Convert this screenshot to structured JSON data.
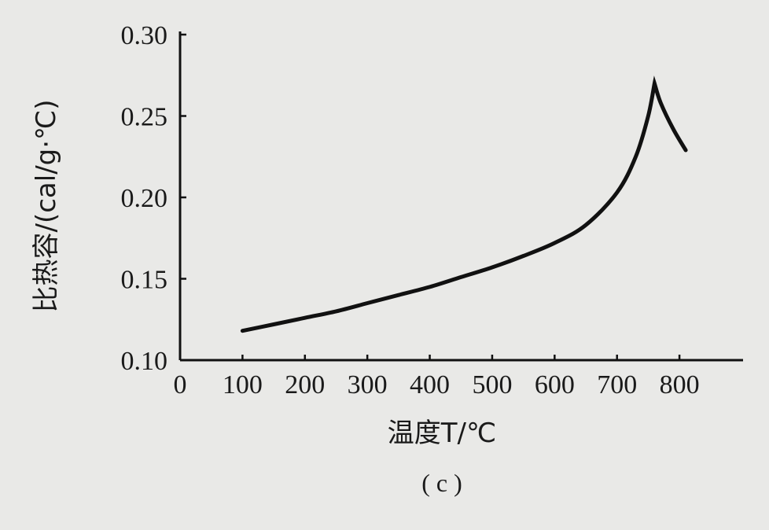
{
  "chart_data": {
    "type": "line",
    "xlabel": "温度T/℃",
    "ylabel": "比热容/(cal/g·℃)",
    "caption": "( c )",
    "xlim": [
      0,
      900
    ],
    "ylim": [
      0.1,
      0.3
    ],
    "x_ticks": [
      {
        "value": 0,
        "label": "0"
      },
      {
        "value": 100,
        "label": "100"
      },
      {
        "value": 200,
        "label": "200"
      },
      {
        "value": 300,
        "label": "300"
      },
      {
        "value": 400,
        "label": "400"
      },
      {
        "value": 500,
        "label": "500"
      },
      {
        "value": 600,
        "label": "600"
      },
      {
        "value": 700,
        "label": "700"
      },
      {
        "value": 800,
        "label": "800"
      }
    ],
    "y_ticks": [
      {
        "value": 0.1,
        "label": "0.10"
      },
      {
        "value": 0.15,
        "label": "0.15"
      },
      {
        "value": 0.2,
        "label": "0.20"
      },
      {
        "value": 0.25,
        "label": "0.25"
      },
      {
        "value": 0.3,
        "label": "0.30"
      }
    ],
    "grid": false,
    "series": [
      {
        "color": "#111111",
        "x": [
          100,
          150,
          200,
          250,
          300,
          350,
          400,
          450,
          500,
          550,
          600,
          650,
          700,
          730,
          750,
          760,
          770,
          790,
          810
        ],
        "y": [
          0.118,
          0.122,
          0.126,
          0.13,
          0.135,
          0.14,
          0.145,
          0.151,
          0.157,
          0.164,
          0.172,
          0.183,
          0.203,
          0.225,
          0.25,
          0.27,
          0.258,
          0.242,
          0.229
        ]
      }
    ]
  }
}
